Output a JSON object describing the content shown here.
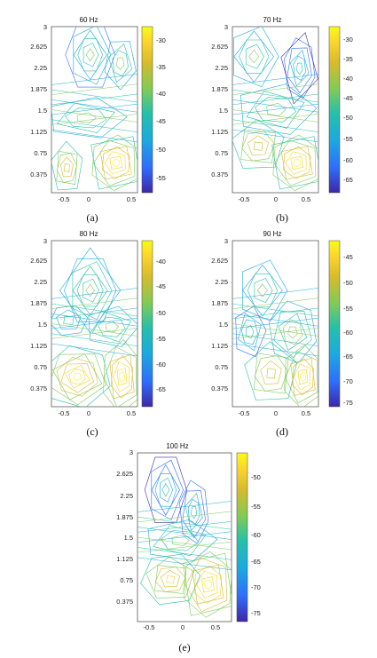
{
  "chart_data": [
    {
      "type": "contour",
      "caption": "(a)",
      "title": "60 Hz",
      "x_ticks": [
        "-0.5",
        "0",
        "0.5"
      ],
      "y_ticks": [
        "3",
        "2.625",
        "2.25",
        "1.875",
        "1.5",
        "1.125",
        "0.75",
        "0.375"
      ],
      "colorbar_ticks": [
        "-30",
        "-35",
        "-40",
        "-45",
        "-50",
        "-55"
      ],
      "clim": [
        -58,
        -28
      ]
    },
    {
      "type": "contour",
      "caption": "(b)",
      "title": "70 Hz",
      "x_ticks": [
        "-0.5",
        "0",
        "0.5"
      ],
      "y_ticks": [
        "3",
        "2.625",
        "2.25",
        "1.875",
        "1.5",
        "1.125",
        "0.75",
        "0.375"
      ],
      "colorbar_ticks": [
        "-30",
        "-35",
        "-40",
        "-45",
        "-50",
        "-55",
        "-60",
        "-65"
      ],
      "clim": [
        -68,
        -28
      ]
    },
    {
      "type": "contour",
      "caption": "(c)",
      "title": "80 Hz",
      "x_ticks": [
        "-0.5",
        "0",
        "0.5"
      ],
      "y_ticks": [
        "3",
        "2.625",
        "2.25",
        "1.875",
        "1.5",
        "1.125",
        "0.75",
        "0.375"
      ],
      "colorbar_ticks": [
        "-40",
        "-45",
        "-50",
        "-55",
        "-60",
        "-65"
      ],
      "clim": [
        -68,
        -36
      ]
    },
    {
      "type": "contour",
      "caption": "(d)",
      "title": "90 Hz",
      "x_ticks": [
        "-0.5",
        "0",
        "0.5"
      ],
      "y_ticks": [
        "3",
        "2.625",
        "2.25",
        "1.875",
        "1.5",
        "1.125",
        "0.75",
        "0.375"
      ],
      "colorbar_ticks": [
        "-45",
        "-50",
        "-55",
        "-60",
        "-65",
        "-70",
        "-75"
      ],
      "clim": [
        -76,
        -40
      ]
    },
    {
      "type": "contour",
      "caption": "(e)",
      "title": "100 Hz",
      "x_ticks": [
        "-0.5",
        "0",
        "0.5"
      ],
      "y_ticks": [
        "3",
        "2.625",
        "2.25",
        "1.875",
        "1.5",
        "1.125",
        "0.75",
        "0.375"
      ],
      "colorbar_ticks": [
        "-50",
        "-55",
        "-60",
        "-65",
        "-70",
        "-75"
      ],
      "clim": [
        -77,
        -45
      ]
    }
  ],
  "colormap": [
    "#3e26a8",
    "#2f6dfc",
    "#1caadf",
    "#27c0a8",
    "#7fcb58",
    "#d6bb2c",
    "#fad32d",
    "#f9fb15"
  ]
}
